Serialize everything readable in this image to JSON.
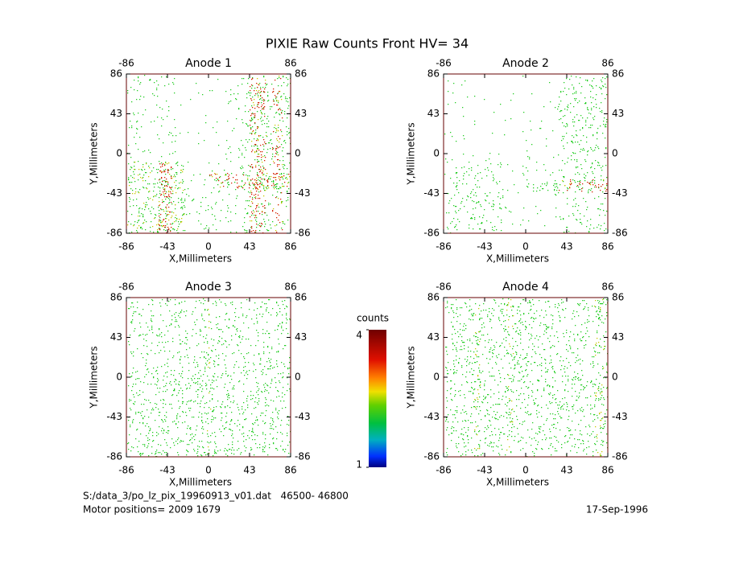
{
  "chart_data": [
    {
      "type": "heatmap",
      "title": "Anode 1",
      "xlabel": "X,Millimeters",
      "ylabel": "Y,Millimeters",
      "xlim": [
        -86,
        86
      ],
      "ylim": [
        -86,
        86
      ],
      "xticks": [
        -86,
        -43,
        0,
        43,
        86
      ],
      "yticks": [
        -86,
        -43,
        0,
        43,
        86
      ]
    },
    {
      "type": "heatmap",
      "title": "Anode 2",
      "xlabel": "X,Millimeters",
      "ylabel": "Y,Millimeters",
      "xlim": [
        -86,
        86
      ],
      "ylim": [
        -86,
        86
      ],
      "xticks": [
        -86,
        -43,
        0,
        43,
        86
      ],
      "yticks": [
        -86,
        -43,
        0,
        43,
        86
      ]
    },
    {
      "type": "heatmap",
      "title": "Anode 3",
      "xlabel": "X,Millimeters",
      "ylabel": "Y,Millimeters",
      "xlim": [
        -86,
        86
      ],
      "ylim": [
        -86,
        86
      ],
      "xticks": [
        -86,
        -43,
        0,
        43,
        86
      ],
      "yticks": [
        -86,
        -43,
        0,
        43,
        86
      ]
    },
    {
      "type": "heatmap",
      "title": "Anode 4",
      "xlabel": "X,Millimeters",
      "ylabel": "Y,Millimeters",
      "xlim": [
        -86,
        86
      ],
      "ylim": [
        -86,
        86
      ],
      "xticks": [
        -86,
        -43,
        0,
        43,
        86
      ],
      "yticks": [
        -86,
        -43,
        0,
        43,
        86
      ]
    }
  ],
  "title": "PIXIE Raw Counts Front HV= 34",
  "colorbar": {
    "label": "counts",
    "lim": [
      1,
      4
    ],
    "ticks": [
      1,
      4
    ]
  },
  "footer": {
    "file": "S:/data_3/po_lz_pix_19960913_v01.dat   46500- 46800",
    "motor": "Motor positions= 2009 1679",
    "date": "17-Sep-1996"
  }
}
